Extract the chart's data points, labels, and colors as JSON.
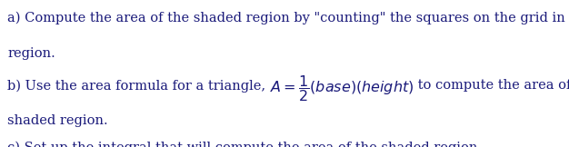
{
  "line_a1": "a) Compute the area of the shaded region by \"counting\" the squares on the grid in the given",
  "line_a2": "region.",
  "line_b1_pre": "b) Use the area formula for a triangle, ",
  "line_b1_math": "$A = \\frac{1}{2}(base)(height)$",
  "line_b1_post": " to compute the area of the",
  "line_b2": "shaded region.",
  "line_c": "c) Set up the integral that will compute the area of the shaded region.",
  "background_color": "#ffffff",
  "text_color": "#1a1a7a",
  "font_size": 10.5,
  "math_font_size": 11.5,
  "figsize": [
    6.26,
    1.62
  ],
  "dpi": 100
}
